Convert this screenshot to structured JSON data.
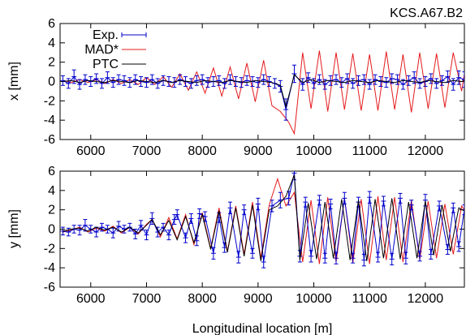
{
  "title": "KCS.A67.B2",
  "colors": {
    "exp": "#0000cc",
    "mad": "#e41a1c",
    "ptc": "#000000"
  },
  "chart_data": [
    {
      "type": "line",
      "ylabel": "x [mm]",
      "xlabel": "",
      "xlim": [
        5450,
        12700
      ],
      "ylim": [
        -6,
        6
      ],
      "xticks": [
        6000,
        7000,
        8000,
        9000,
        10000,
        11000,
        12000
      ],
      "yticks": [
        -6,
        -4,
        -2,
        0,
        2,
        4,
        6
      ],
      "legend_position": "top-left",
      "series": [
        {
          "name": "Exp.",
          "style": "errorbar",
          "x": [
            5500,
            5600,
            5700,
            5800,
            5900,
            6000,
            6100,
            6200,
            6300,
            6400,
            6500,
            6600,
            6700,
            6800,
            6900,
            7000,
            7100,
            7200,
            7300,
            7400,
            7500,
            7600,
            7700,
            7800,
            7900,
            8000,
            8100,
            8200,
            8300,
            8400,
            8500,
            8600,
            8700,
            8800,
            8900,
            9000,
            9100,
            9200,
            9300,
            9400,
            9500,
            9650,
            9800,
            9900,
            10000,
            10100,
            10200,
            10300,
            10400,
            10500,
            10600,
            10700,
            10800,
            10900,
            11000,
            11100,
            11200,
            11300,
            11400,
            11500,
            11600,
            11700,
            11800,
            11900,
            12000,
            12100,
            12200,
            12300,
            12400,
            12500,
            12600,
            12700
          ],
          "y": [
            0.1,
            -0.2,
            0.5,
            -0.3,
            0.2,
            0.0,
            0.3,
            -0.2,
            0.4,
            -0.1,
            0.2,
            0.1,
            -0.1,
            0.2,
            0.0,
            -0.1,
            0.2,
            -0.2,
            0.1,
            0.0,
            -0.1,
            0.2,
            0.0,
            -0.2,
            0.1,
            0.2,
            -0.1,
            0.0,
            0.1,
            -0.2,
            0.2,
            0.0,
            -0.1,
            0.1,
            0.0,
            -0.1,
            0.2,
            0.0,
            -0.2,
            -0.5,
            -2.9,
            0.8,
            -0.3,
            0.4,
            -0.2,
            0.2,
            -0.3,
            0.1,
            0.2,
            -0.1,
            0.3,
            -0.2,
            0.1,
            0.2,
            -0.3,
            0.2,
            0.0,
            -0.1,
            0.3,
            0.2,
            -0.3,
            0.1,
            0.4,
            -0.2,
            0.0,
            0.3,
            -0.2,
            0.1,
            0.5,
            -0.3,
            0.4,
            0.2
          ],
          "err": [
            0.5,
            0.5,
            0.7,
            0.5,
            0.5,
            0.5,
            0.5,
            0.5,
            0.6,
            0.5,
            0.5,
            0.5,
            0.5,
            0.5,
            0.5,
            0.5,
            0.5,
            0.5,
            0.5,
            0.5,
            0.5,
            0.5,
            0.5,
            0.5,
            0.5,
            0.5,
            0.5,
            0.5,
            0.5,
            0.5,
            0.5,
            0.5,
            0.5,
            0.5,
            0.5,
            0.5,
            0.5,
            0.5,
            0.5,
            0.6,
            1.1,
            0.9,
            0.6,
            0.5,
            0.5,
            0.5,
            0.5,
            0.5,
            0.5,
            0.5,
            0.5,
            0.5,
            0.5,
            0.5,
            0.5,
            0.5,
            0.5,
            0.5,
            0.5,
            0.5,
            0.5,
            0.5,
            0.6,
            0.5,
            0.5,
            0.5,
            0.5,
            0.5,
            0.6,
            0.6,
            0.7,
            0.8
          ]
        },
        {
          "name": "MAD*",
          "style": "line",
          "x": [
            5500,
            5650,
            5800,
            5950,
            6100,
            6250,
            6400,
            6550,
            6700,
            6850,
            7000,
            7150,
            7300,
            7450,
            7600,
            7750,
            7900,
            8050,
            8200,
            8350,
            8500,
            8650,
            8800,
            8950,
            9100,
            9250,
            9400,
            9550,
            9650,
            9800,
            9950,
            10100,
            10250,
            10400,
            10550,
            10700,
            10850,
            11000,
            11150,
            11300,
            11450,
            11600,
            11750,
            11900,
            12050,
            12200,
            12350,
            12500,
            12650,
            12700
          ],
          "y": [
            0.1,
            -0.1,
            0.2,
            -0.1,
            0.2,
            -0.2,
            0.2,
            -0.2,
            0.2,
            -0.3,
            0.4,
            -0.3,
            0.5,
            -0.6,
            0.8,
            -0.9,
            1.0,
            -1.2,
            1.4,
            -1.5,
            1.5,
            -1.8,
            1.9,
            -2.1,
            2.2,
            -2.5,
            -3.1,
            -4.2,
            -5.4,
            3.0,
            -2.8,
            3.2,
            -3.1,
            3.0,
            -2.9,
            2.9,
            -3.0,
            2.8,
            -3.0,
            3.1,
            -2.9,
            2.8,
            -3.2,
            3.0,
            -2.8,
            2.9,
            -2.7,
            3.0,
            -1.0,
            0.8
          ]
        },
        {
          "name": "PTC",
          "style": "line",
          "x": [
            5500,
            5650,
            5800,
            5950,
            6100,
            6250,
            6400,
            6550,
            6700,
            6850,
            7000,
            7150,
            7300,
            7450,
            7600,
            7750,
            7900,
            8050,
            8200,
            8350,
            8500,
            8650,
            8800,
            8950,
            9100,
            9250,
            9400,
            9500,
            9650,
            9800,
            9950,
            10100,
            10250,
            10400,
            10550,
            10700,
            10850,
            11000,
            11150,
            11300,
            11450,
            11600,
            11750,
            11900,
            12050,
            12200,
            12350,
            12500,
            12650,
            12700
          ],
          "y": [
            0.0,
            0.1,
            -0.1,
            0.1,
            0.0,
            -0.1,
            0.1,
            0.0,
            -0.1,
            0.1,
            0.0,
            -0.1,
            0.1,
            -0.1,
            0.1,
            0.0,
            -0.1,
            0.1,
            0.0,
            -0.1,
            0.1,
            0.0,
            -0.1,
            0.1,
            0.0,
            -0.1,
            -0.4,
            -2.6,
            0.7,
            -0.1,
            0.2,
            -0.1,
            0.1,
            0.0,
            -0.1,
            0.1,
            0.0,
            -0.1,
            0.1,
            0.0,
            -0.1,
            0.1,
            0.0,
            -0.1,
            0.1,
            0.0,
            -0.1,
            0.1,
            0.0,
            0.1
          ]
        }
      ]
    },
    {
      "type": "line",
      "ylabel": "y [mm]",
      "xlabel": "Longitudinal location [m]",
      "xlim": [
        5450,
        12700
      ],
      "ylim": [
        -6,
        6
      ],
      "xticks": [
        6000,
        7000,
        8000,
        9000,
        10000,
        11000,
        12000
      ],
      "yticks": [
        -6,
        -4,
        -2,
        0,
        2,
        4,
        6
      ],
      "series": [
        {
          "name": "Exp.",
          "style": "errorbar",
          "x": [
            5500,
            5600,
            5700,
            5800,
            5900,
            6000,
            6100,
            6200,
            6300,
            6400,
            6500,
            6600,
            6700,
            6800,
            6900,
            7000,
            7100,
            7200,
            7300,
            7400,
            7500,
            7550,
            7700,
            7800,
            7900,
            7950,
            8050,
            8200,
            8300,
            8400,
            8500,
            8650,
            8750,
            8900,
            9000,
            9100,
            9250,
            9400,
            9550,
            9650,
            9750,
            9850,
            9950,
            10100,
            10200,
            10300,
            10400,
            10550,
            10700,
            10800,
            10900,
            11000,
            11150,
            11250,
            11400,
            11550,
            11650,
            11750,
            11900,
            12000,
            12100,
            12250,
            12400,
            12500,
            12600,
            12700
          ],
          "y": [
            -0.2,
            -0.3,
            0.0,
            -0.1,
            0.4,
            0.0,
            -0.3,
            0.2,
            0.0,
            -0.4,
            0.3,
            0.0,
            0.2,
            -0.5,
            0.4,
            -0.6,
            1.1,
            -0.3,
            0.2,
            -0.6,
            1.0,
            1.5,
            -0.9,
            1.1,
            -1.2,
            1.6,
            1.3,
            -2.5,
            1.2,
            -1.9,
            2.2,
            -2.9,
            2.0,
            -2.5,
            2.6,
            -3.4,
            2.4,
            3.0,
            3.2,
            5.8,
            -2.8,
            2.8,
            -2.8,
            3.0,
            -3.0,
            2.6,
            -3.0,
            3.2,
            -3.0,
            2.8,
            -3.2,
            3.3,
            -2.9,
            2.9,
            -3.1,
            3.2,
            -3.0,
            2.5,
            -2.8,
            3.0,
            -2.6,
            2.4,
            -2.1,
            2.2,
            -1.8,
            2.0
          ],
          "err": [
            0.4,
            0.4,
            0.4,
            0.5,
            0.6,
            0.4,
            0.5,
            0.4,
            0.4,
            0.5,
            0.5,
            0.4,
            0.4,
            0.5,
            0.5,
            0.5,
            0.6,
            0.5,
            0.4,
            0.5,
            0.5,
            0.5,
            0.5,
            0.5,
            0.5,
            0.5,
            0.5,
            0.6,
            0.5,
            0.5,
            0.6,
            0.6,
            0.5,
            0.5,
            0.6,
            0.6,
            0.6,
            0.8,
            0.7,
            0.7,
            0.6,
            0.5,
            0.6,
            0.5,
            0.5,
            0.5,
            0.6,
            0.6,
            0.5,
            0.5,
            0.6,
            0.6,
            0.5,
            0.5,
            0.6,
            0.5,
            0.6,
            0.5,
            0.5,
            0.6,
            0.5,
            0.5,
            0.5,
            0.5,
            0.5,
            0.5
          ]
        },
        {
          "name": "MAD*",
          "style": "line",
          "x": [
            5500,
            5650,
            5800,
            5950,
            6100,
            6250,
            6400,
            6550,
            6700,
            6850,
            7000,
            7100,
            7250,
            7400,
            7550,
            7700,
            7850,
            8000,
            8150,
            8300,
            8450,
            8600,
            8750,
            8900,
            9050,
            9200,
            9350,
            9500,
            9650,
            9800,
            9950,
            10100,
            10250,
            10400,
            10550,
            10700,
            10850,
            11000,
            11150,
            11300,
            11450,
            11600,
            11750,
            11900,
            12050,
            12200,
            12350,
            12500,
            12650,
            12700
          ],
          "y": [
            -0.3,
            -0.1,
            0.2,
            -0.3,
            0.1,
            -0.2,
            0.3,
            -0.4,
            0.2,
            -0.5,
            0.5,
            1.0,
            -0.8,
            1.2,
            -1.0,
            1.5,
            -1.6,
            1.7,
            -2.0,
            2.2,
            -2.3,
            2.4,
            -2.6,
            2.8,
            -3.0,
            2.5,
            5.2,
            2.4,
            3.8,
            -3.4,
            3.0,
            -3.6,
            3.3,
            -3.4,
            3.2,
            -3.5,
            3.1,
            -3.6,
            3.4,
            -3.2,
            3.3,
            -3.4,
            3.0,
            -3.2,
            2.9,
            -3.0,
            2.6,
            -2.6,
            2.4,
            2.0
          ]
        },
        {
          "name": "PTC",
          "style": "line",
          "x": [
            5500,
            5650,
            5800,
            5950,
            6100,
            6250,
            6400,
            6550,
            6700,
            6850,
            7000,
            7100,
            7250,
            7400,
            7550,
            7700,
            7850,
            8000,
            8150,
            8300,
            8450,
            8600,
            8750,
            8900,
            9050,
            9200,
            9350,
            9500,
            9650,
            9750,
            9900,
            10050,
            10200,
            10350,
            10500,
            10650,
            10800,
            10950,
            11100,
            11250,
            11400,
            11550,
            11700,
            11850,
            12000,
            12150,
            12300,
            12450,
            12600,
            12700
          ],
          "y": [
            -0.2,
            0.0,
            0.1,
            -0.2,
            0.2,
            -0.1,
            0.2,
            -0.3,
            0.2,
            -0.4,
            0.4,
            1.0,
            -0.6,
            0.9,
            -1.1,
            1.3,
            -1.4,
            1.5,
            -2.1,
            1.9,
            -2.4,
            2.2,
            -2.8,
            2.5,
            -3.3,
            2.0,
            2.4,
            3.4,
            5.6,
            -3.2,
            2.7,
            -3.1,
            2.8,
            -3.0,
            3.1,
            -3.2,
            3.0,
            -3.3,
            3.1,
            -3.0,
            3.2,
            -3.1,
            2.8,
            -3.0,
            2.9,
            -2.7,
            2.5,
            -2.3,
            2.2,
            1.9
          ]
        }
      ]
    }
  ]
}
